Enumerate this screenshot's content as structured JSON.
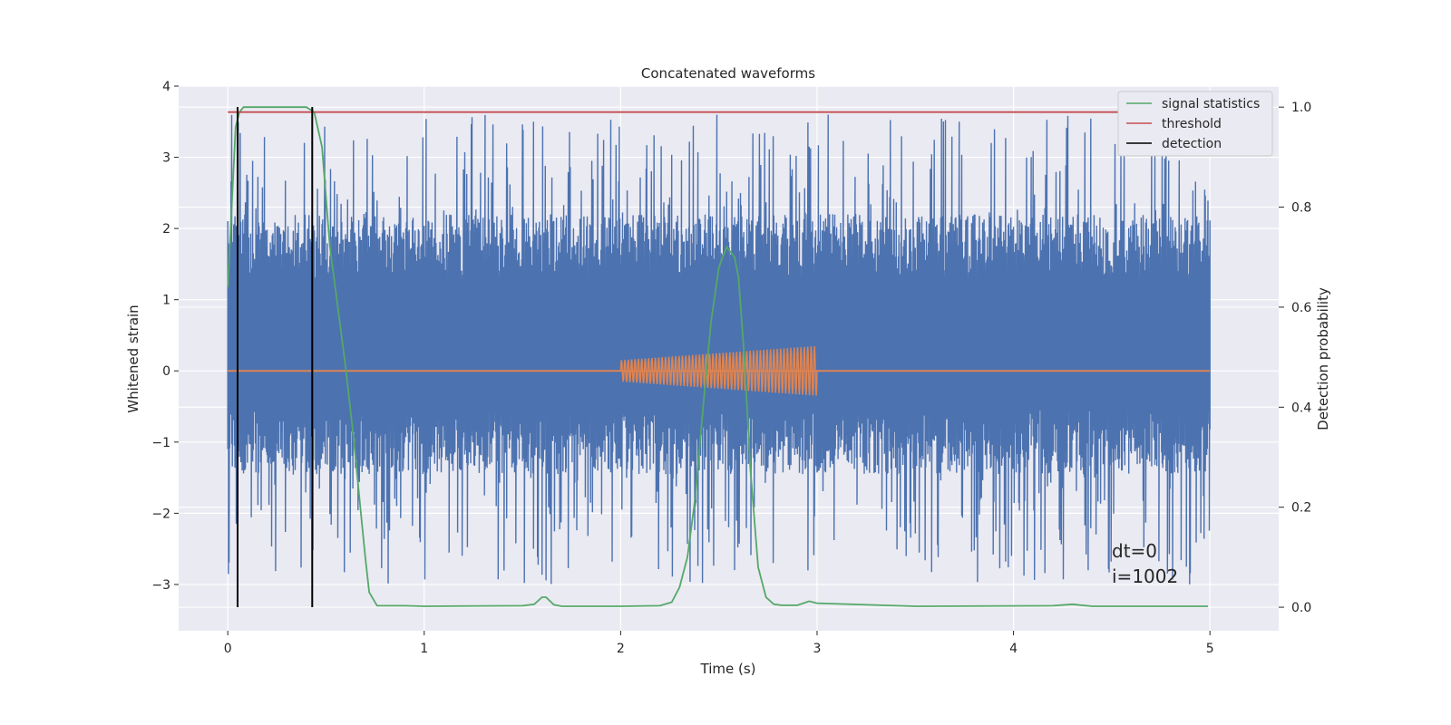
{
  "chart_data": {
    "type": "line",
    "title": "Concatenated waveforms",
    "xlabel": "Time (s)",
    "ylabel": "Whitened strain",
    "y2label": "Detection probability",
    "xlim": [
      -0.25,
      5.35
    ],
    "ylim": [
      -3.65,
      4.0
    ],
    "y2lim": [
      -0.047,
      1.042
    ],
    "xticks": [
      0,
      1,
      2,
      3,
      4,
      5
    ],
    "yticks": [
      -3,
      -2,
      -1,
      0,
      1,
      2,
      3,
      4
    ],
    "y2ticks": [
      0.0,
      0.2,
      0.4,
      0.6,
      0.8,
      1.0
    ],
    "grid": true,
    "legend_position": "top-right",
    "legend": [
      "signal statistics",
      "threshold",
      "detection"
    ],
    "colors": {
      "strain": "#4c72b0",
      "injection": "#dd8452",
      "signal_statistics": "#55a868",
      "threshold": "#c44e52",
      "detection": "#000000",
      "background": "#eaeaf2",
      "grid": "#ffffff"
    },
    "series": [
      {
        "name": "signal statistics",
        "axis": "right",
        "x": [
          0.0,
          0.02,
          0.04,
          0.06,
          0.08,
          0.1,
          0.2,
          0.3,
          0.4,
          0.44,
          0.48,
          0.52,
          0.56,
          0.6,
          0.64,
          0.68,
          0.7,
          0.72,
          0.76,
          0.9,
          1.0,
          1.5,
          1.56,
          1.6,
          1.62,
          1.66,
          1.7,
          2.0,
          2.2,
          2.26,
          2.3,
          2.34,
          2.38,
          2.42,
          2.46,
          2.5,
          2.54,
          2.58,
          2.6,
          2.63,
          2.66,
          2.7,
          2.74,
          2.78,
          2.82,
          2.9,
          2.96,
          3.0,
          3.5,
          4.2,
          4.3,
          4.4,
          4.99
        ],
        "y": [
          0.64,
          0.8,
          0.96,
          0.99,
          1.0,
          1.0,
          1.0,
          1.0,
          1.0,
          0.99,
          0.92,
          0.72,
          0.6,
          0.48,
          0.34,
          0.18,
          0.1,
          0.03,
          0.003,
          0.003,
          0.002,
          0.003,
          0.006,
          0.02,
          0.02,
          0.005,
          0.002,
          0.002,
          0.003,
          0.01,
          0.04,
          0.1,
          0.22,
          0.4,
          0.57,
          0.68,
          0.72,
          0.7,
          0.66,
          0.5,
          0.28,
          0.08,
          0.02,
          0.006,
          0.004,
          0.004,
          0.012,
          0.008,
          0.002,
          0.003,
          0.006,
          0.002,
          0.002
        ]
      },
      {
        "name": "threshold",
        "axis": "right",
        "x": [
          0.0,
          4.99
        ],
        "y": [
          0.99,
          0.99
        ]
      }
    ],
    "detections": [
      0.05,
      0.43
    ],
    "strain": {
      "x_range": [
        0.0,
        5.0
      ],
      "core_range": [
        -0.55,
        1.3
      ],
      "peak_range": [
        -3.0,
        3.6
      ]
    },
    "injection": {
      "x_range": [
        2.0,
        3.0
      ],
      "amplitude_start": 0.15,
      "amplitude_end": 0.35
    },
    "annotations": [
      "dt=0",
      "i=1002"
    ]
  }
}
